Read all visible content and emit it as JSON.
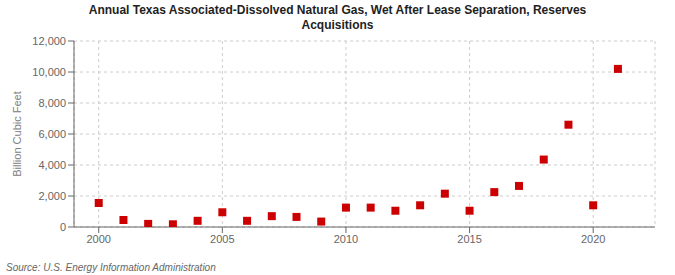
{
  "chart_data": {
    "type": "scatter",
    "title": "Annual Texas Associated-Dissolved Natural Gas, Wet After Lease Separation, Reserves\nAcquisitions",
    "ylabel": "Billion Cubic Feet",
    "source": "Source: U.S. Energy Information Administration",
    "x": [
      2000,
      2001,
      2002,
      2003,
      2004,
      2005,
      2006,
      2007,
      2008,
      2009,
      2010,
      2011,
      2012,
      2013,
      2014,
      2015,
      2016,
      2017,
      2018,
      2019,
      2020,
      2021
    ],
    "values": [
      1550,
      450,
      200,
      175,
      400,
      950,
      400,
      700,
      650,
      350,
      1250,
      1250,
      1050,
      1400,
      2150,
      1050,
      2250,
      2650,
      4350,
      6600,
      1400,
      10200
    ],
    "xlim": [
      1999,
      2022.5
    ],
    "ylim": [
      0,
      12000
    ],
    "xticks": [
      2000,
      2005,
      2010,
      2015,
      2020
    ],
    "yticks": [
      0,
      {
        "value": 2000,
        "label": "2,000"
      },
      {
        "value": 4000,
        "label": "4,000"
      },
      {
        "value": 6000,
        "label": "6,000"
      },
      {
        "value": 8000,
        "label": "8,000"
      },
      {
        "value": 10000,
        "label": "10,000"
      },
      {
        "value": 12000,
        "label": "12,000"
      }
    ],
    "color": "#cc0000",
    "marker": "square",
    "grid": true
  }
}
